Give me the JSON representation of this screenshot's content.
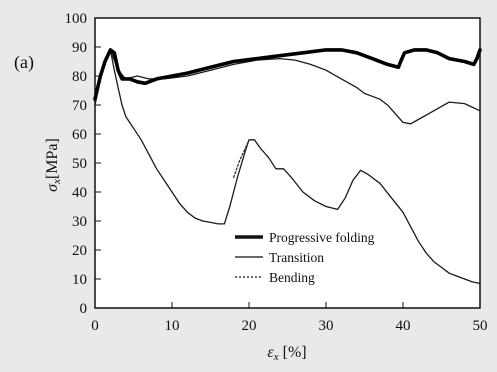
{
  "figure": {
    "panel_label": "(a)"
  },
  "chart_data": {
    "type": "line",
    "xlabel": "ε_x [%]",
    "ylabel": "σ_x [MPa]",
    "xlim": [
      0,
      50
    ],
    "ylim": [
      0,
      100
    ],
    "x_ticks": [
      0,
      10,
      20,
      30,
      40,
      50
    ],
    "y_ticks": [
      0,
      10,
      20,
      30,
      40,
      50,
      60,
      70,
      80,
      90,
      100
    ],
    "grid": false,
    "legend_position": "lower-right",
    "series": [
      {
        "name": "Progressive folding",
        "style": "thick",
        "color": "#000000",
        "points": [
          [
            0,
            72
          ],
          [
            0.7,
            80
          ],
          [
            1.3,
            85
          ],
          [
            2,
            89
          ],
          [
            2.5,
            88
          ],
          [
            3,
            82
          ],
          [
            3.5,
            79
          ],
          [
            4.5,
            79
          ],
          [
            5.5,
            78
          ],
          [
            6.5,
            77.5
          ],
          [
            8,
            79
          ],
          [
            10,
            80
          ],
          [
            12,
            81
          ],
          [
            15,
            83
          ],
          [
            18,
            85
          ],
          [
            21,
            86
          ],
          [
            24,
            87
          ],
          [
            27,
            88
          ],
          [
            30,
            89
          ],
          [
            32,
            89
          ],
          [
            34,
            88
          ],
          [
            36,
            86
          ],
          [
            38,
            84
          ],
          [
            39.4,
            83
          ],
          [
            39.7,
            85
          ],
          [
            40.2,
            88
          ],
          [
            41.5,
            89
          ],
          [
            43,
            89
          ],
          [
            44.5,
            88
          ],
          [
            46,
            86
          ],
          [
            48,
            85
          ],
          [
            49.2,
            84
          ],
          [
            49.6,
            86
          ],
          [
            50,
            89
          ]
        ]
      },
      {
        "name": "Transition",
        "style": "thin",
        "color": "#1a1a1a",
        "points": [
          [
            0,
            70
          ],
          [
            0.7,
            80
          ],
          [
            1.5,
            86
          ],
          [
            2,
            89
          ],
          [
            3,
            82
          ],
          [
            4,
            79
          ],
          [
            5.5,
            80
          ],
          [
            7,
            79
          ],
          [
            9,
            79
          ],
          [
            12,
            80
          ],
          [
            15,
            82
          ],
          [
            18,
            84
          ],
          [
            21,
            85.5
          ],
          [
            24,
            86
          ],
          [
            26,
            85.5
          ],
          [
            28,
            84
          ],
          [
            30,
            82
          ],
          [
            32,
            79
          ],
          [
            34,
            76
          ],
          [
            35,
            74
          ],
          [
            36,
            73
          ],
          [
            37,
            72
          ],
          [
            38,
            70
          ],
          [
            39,
            67
          ],
          [
            40,
            64
          ],
          [
            41,
            63.5
          ],
          [
            42,
            65
          ],
          [
            44,
            68
          ],
          [
            46,
            71
          ],
          [
            48,
            70.5
          ],
          [
            50,
            68
          ]
        ]
      },
      {
        "name": "Bending",
        "style": "thin",
        "color": "#1a1a1a",
        "points": [
          [
            0,
            70
          ],
          [
            0.7,
            80
          ],
          [
            1.5,
            86
          ],
          [
            2,
            89
          ],
          [
            2.5,
            82
          ],
          [
            3,
            76
          ],
          [
            3.5,
            70
          ],
          [
            4,
            66
          ],
          [
            5,
            62
          ],
          [
            6,
            58
          ],
          [
            7,
            53
          ],
          [
            8,
            48
          ],
          [
            9,
            44
          ],
          [
            10,
            40
          ],
          [
            11,
            36
          ],
          [
            12,
            33
          ],
          [
            13,
            31
          ],
          [
            14,
            30
          ],
          [
            15,
            29.5
          ],
          [
            16,
            29
          ],
          [
            16.8,
            29
          ],
          [
            17.5,
            35
          ],
          [
            18.5,
            45
          ],
          [
            19.5,
            54
          ],
          [
            20,
            58
          ],
          [
            20.7,
            58
          ],
          [
            21.5,
            55
          ],
          [
            22.5,
            52
          ],
          [
            23.5,
            48
          ],
          [
            24.5,
            48
          ],
          [
            25.5,
            45
          ],
          [
            27,
            40
          ],
          [
            28.5,
            37
          ],
          [
            30,
            35
          ],
          [
            31.5,
            34
          ],
          [
            32.5,
            38
          ],
          [
            33.5,
            44
          ],
          [
            34.5,
            47.5
          ],
          [
            35.5,
            46
          ],
          [
            37,
            43
          ],
          [
            38.5,
            38
          ],
          [
            40,
            33
          ],
          [
            41,
            28
          ],
          [
            42,
            23
          ],
          [
            43,
            19
          ],
          [
            44,
            16
          ],
          [
            45,
            14
          ],
          [
            46,
            12
          ],
          [
            47,
            11
          ],
          [
            48,
            10
          ],
          [
            49,
            9
          ],
          [
            50,
            8.5
          ]
        ]
      },
      {
        "name": "Bending dashed segments",
        "style": "dashed",
        "color": "#333333",
        "points": [
          [
            18,
            45
          ],
          [
            18.8,
            51
          ],
          [
            19.5,
            55
          ],
          [
            20,
            58
          ]
        ]
      }
    ],
    "legend": [
      {
        "label": "Progressive folding",
        "style": "thick"
      },
      {
        "label": "Transition",
        "style": "thin"
      },
      {
        "label": "Bending",
        "style": "dashed"
      }
    ]
  }
}
